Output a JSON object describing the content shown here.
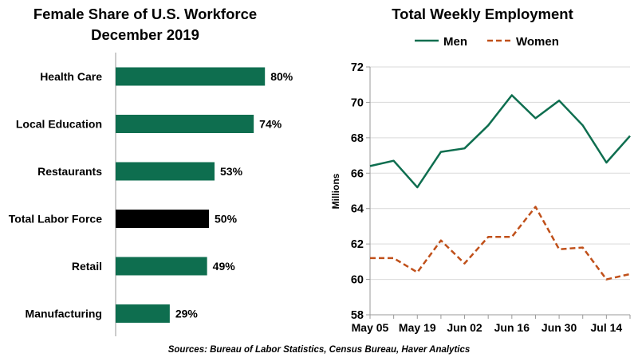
{
  "source_note": "Sources: Bureau of Labor Statistics, Census Bureau, Haver Analytics",
  "colors": {
    "green": "#0e6e4f",
    "black": "#000000",
    "orange": "#c0501a",
    "axis": "#999999",
    "grid": "#d9d9d9"
  },
  "chart_data": [
    {
      "type": "bar",
      "orientation": "horizontal",
      "title_line1": "Female Share of U.S. Workforce",
      "title_line2": "December 2019",
      "categories": [
        "Health Care",
        "Local Education",
        "Restaurants",
        "Total Labor Force",
        "Retail",
        "Manufacturing"
      ],
      "values": [
        80,
        74,
        53,
        50,
        49,
        29
      ],
      "value_labels": [
        "80%",
        "74%",
        "53%",
        "50%",
        "49%",
        "29%"
      ],
      "highlight_category": "Total Labor Force",
      "xlim": [
        0,
        100
      ]
    },
    {
      "type": "line",
      "title": "Total Weekly Employment",
      "ylabel": "Millions",
      "ylim": [
        58,
        72
      ],
      "yticks": [
        58,
        60,
        62,
        64,
        66,
        68,
        70,
        72
      ],
      "x_tick_labels": [
        "May 05",
        "May 19",
        "Jun 02",
        "Jun 16",
        "Jun 30",
        "Jul 14"
      ],
      "x_tick_positions": [
        0,
        2,
        4,
        6,
        8,
        10
      ],
      "x_count": 12,
      "legend_position": "top",
      "series": [
        {
          "name": "Men",
          "style": "solid",
          "values": [
            66.4,
            66.7,
            65.2,
            67.2,
            67.4,
            68.7,
            70.4,
            69.1,
            70.1,
            68.7,
            66.6,
            68.1
          ]
        },
        {
          "name": "Women",
          "style": "dashed",
          "values": [
            61.2,
            61.2,
            60.4,
            62.2,
            60.9,
            62.4,
            62.4,
            64.1,
            61.7,
            61.8,
            60.0,
            60.3
          ]
        }
      ]
    }
  ]
}
